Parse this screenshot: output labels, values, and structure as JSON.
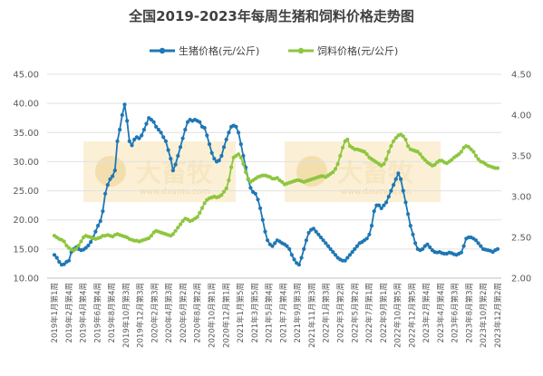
{
  "chart_data": {
    "type": "line",
    "title": "全国2019-2023年每周生猪和饲料价格走势图",
    "watermark": {
      "text": "大畜牧",
      "url": "www.dxumu.com"
    },
    "y_left": {
      "ticks": [
        "10.00",
        "15.00",
        "20.00",
        "25.00",
        "30.00",
        "35.00",
        "40.00",
        "45.00"
      ],
      "min": 10,
      "max": 45
    },
    "y_right": {
      "ticks": [
        "2.00",
        "2.50",
        "3.00",
        "3.50",
        "4.00",
        "4.50"
      ],
      "min": 2.0,
      "max": 4.5
    },
    "x_labels": [
      "2019年1月第1周",
      "2019年2月第4周",
      "2019年4月第4周",
      "2019年6月第4周",
      "2019年8月第4周",
      "2019年10月第3周",
      "2019年12月第3周",
      "2020年2月第3周",
      "2020年4月第3周",
      "2020年6月第2周",
      "2020年8月第2周",
      "2020年10月第1周",
      "2020年12月第1周",
      "2021年1月第5周",
      "2021年3月第5周",
      "2021年5月第4周",
      "2021年7月第4周",
      "2021年9月第3周",
      "2021年11月第3周",
      "2022年1月第3周",
      "2022年3月第2周",
      "2022年5月第2周",
      "2022年7月第1周",
      "2022年9月第1周",
      "2022年10月第5周",
      "2022年12月第5周",
      "2023年2月第4周",
      "2023年4月第4周",
      "2023年6月第3周",
      "2023年8月第3周",
      "2023年10月第2周",
      "2023年12月第2周"
    ],
    "series": [
      {
        "name": "生猪价格(元/公斤)",
        "axis": "left",
        "color": "#1f77b4",
        "values": [
          14.0,
          13.5,
          12.8,
          12.3,
          12.4,
          12.8,
          13.0,
          14.5,
          15.0,
          15.3,
          15.0,
          14.8,
          14.9,
          15.2,
          15.6,
          16.2,
          17.0,
          18.0,
          19.0,
          19.8,
          21.5,
          24.5,
          26.0,
          27.0,
          27.5,
          28.5,
          33.5,
          35.5,
          38.0,
          39.8,
          37.0,
          33.5,
          32.8,
          33.8,
          34.2,
          34.0,
          34.5,
          35.5,
          36.5,
          37.5,
          37.2,
          36.8,
          36.0,
          35.5,
          35.0,
          34.2,
          33.5,
          32.0,
          30.5,
          28.5,
          29.5,
          31.0,
          32.5,
          34.0,
          35.5,
          36.8,
          37.2,
          37.0,
          37.2,
          37.0,
          36.8,
          36.0,
          35.8,
          34.5,
          33.0,
          31.5,
          30.5,
          30.0,
          30.2,
          31.0,
          32.5,
          33.8,
          35.0,
          36.0,
          36.2,
          36.0,
          35.0,
          33.0,
          31.0,
          29.0,
          27.0,
          25.5,
          24.8,
          24.5,
          23.5,
          22.0,
          20.0,
          18.0,
          16.5,
          15.8,
          15.5,
          16.0,
          16.5,
          16.3,
          16.0,
          15.8,
          15.5,
          15.0,
          14.0,
          13.2,
          12.6,
          12.3,
          13.5,
          15.0,
          16.5,
          17.8,
          18.3,
          18.5,
          18.0,
          17.5,
          17.0,
          16.5,
          16.0,
          15.5,
          15.0,
          14.5,
          14.0,
          13.5,
          13.2,
          13.0,
          13.0,
          13.5,
          14.0,
          14.5,
          15.0,
          15.5,
          16.0,
          16.2,
          16.5,
          16.8,
          17.5,
          19.0,
          21.5,
          22.5,
          22.5,
          22.0,
          22.5,
          23.0,
          24.0,
          25.0,
          26.0,
          27.0,
          28.0,
          27.0,
          25.0,
          23.0,
          21.0,
          19.0,
          17.5,
          16.0,
          15.0,
          14.8,
          15.0,
          15.5,
          15.8,
          15.3,
          14.8,
          14.5,
          14.4,
          14.5,
          14.3,
          14.2,
          14.2,
          14.4,
          14.3,
          14.1,
          14.0,
          14.2,
          14.4,
          15.5,
          16.8,
          17.0,
          17.0,
          16.8,
          16.5,
          16.0,
          15.5,
          15.0,
          14.9,
          14.8,
          14.7,
          14.5,
          14.8,
          15.0
        ]
      },
      {
        "name": "饲料价格(元/公斤)",
        "axis": "right",
        "color": "#8dc63f",
        "values": [
          2.52,
          2.5,
          2.48,
          2.47,
          2.45,
          2.4,
          2.37,
          2.35,
          2.34,
          2.36,
          2.4,
          2.45,
          2.5,
          2.52,
          2.51,
          2.5,
          2.49,
          2.48,
          2.49,
          2.5,
          2.52,
          2.52,
          2.53,
          2.52,
          2.51,
          2.53,
          2.54,
          2.53,
          2.52,
          2.51,
          2.5,
          2.48,
          2.47,
          2.46,
          2.46,
          2.45,
          2.46,
          2.47,
          2.48,
          2.49,
          2.52,
          2.56,
          2.58,
          2.57,
          2.56,
          2.55,
          2.54,
          2.53,
          2.52,
          2.54,
          2.58,
          2.62,
          2.66,
          2.7,
          2.73,
          2.72,
          2.7,
          2.71,
          2.73,
          2.75,
          2.8,
          2.86,
          2.92,
          2.96,
          2.98,
          2.99,
          3.0,
          2.99,
          3.0,
          3.02,
          3.06,
          3.1,
          3.2,
          3.36,
          3.48,
          3.5,
          3.52,
          3.48,
          3.4,
          3.3,
          3.22,
          3.18,
          3.2,
          3.22,
          3.24,
          3.25,
          3.26,
          3.26,
          3.25,
          3.24,
          3.22,
          3.22,
          3.23,
          3.2,
          3.18,
          3.15,
          3.16,
          3.17,
          3.18,
          3.19,
          3.2,
          3.2,
          3.19,
          3.18,
          3.19,
          3.2,
          3.21,
          3.22,
          3.23,
          3.24,
          3.25,
          3.25,
          3.24,
          3.26,
          3.28,
          3.3,
          3.34,
          3.4,
          3.5,
          3.6,
          3.68,
          3.7,
          3.62,
          3.6,
          3.58,
          3.58,
          3.57,
          3.56,
          3.55,
          3.52,
          3.48,
          3.46,
          3.44,
          3.42,
          3.4,
          3.38,
          3.4,
          3.46,
          3.55,
          3.62,
          3.68,
          3.72,
          3.75,
          3.76,
          3.74,
          3.7,
          3.62,
          3.58,
          3.57,
          3.56,
          3.55,
          3.52,
          3.48,
          3.45,
          3.42,
          3.4,
          3.38,
          3.39,
          3.42,
          3.44,
          3.44,
          3.42,
          3.41,
          3.43,
          3.45,
          3.48,
          3.5,
          3.52,
          3.55,
          3.6,
          3.62,
          3.61,
          3.58,
          3.55,
          3.5,
          3.46,
          3.43,
          3.42,
          3.4,
          3.38,
          3.37,
          3.36,
          3.35,
          3.35
        ]
      }
    ]
  }
}
